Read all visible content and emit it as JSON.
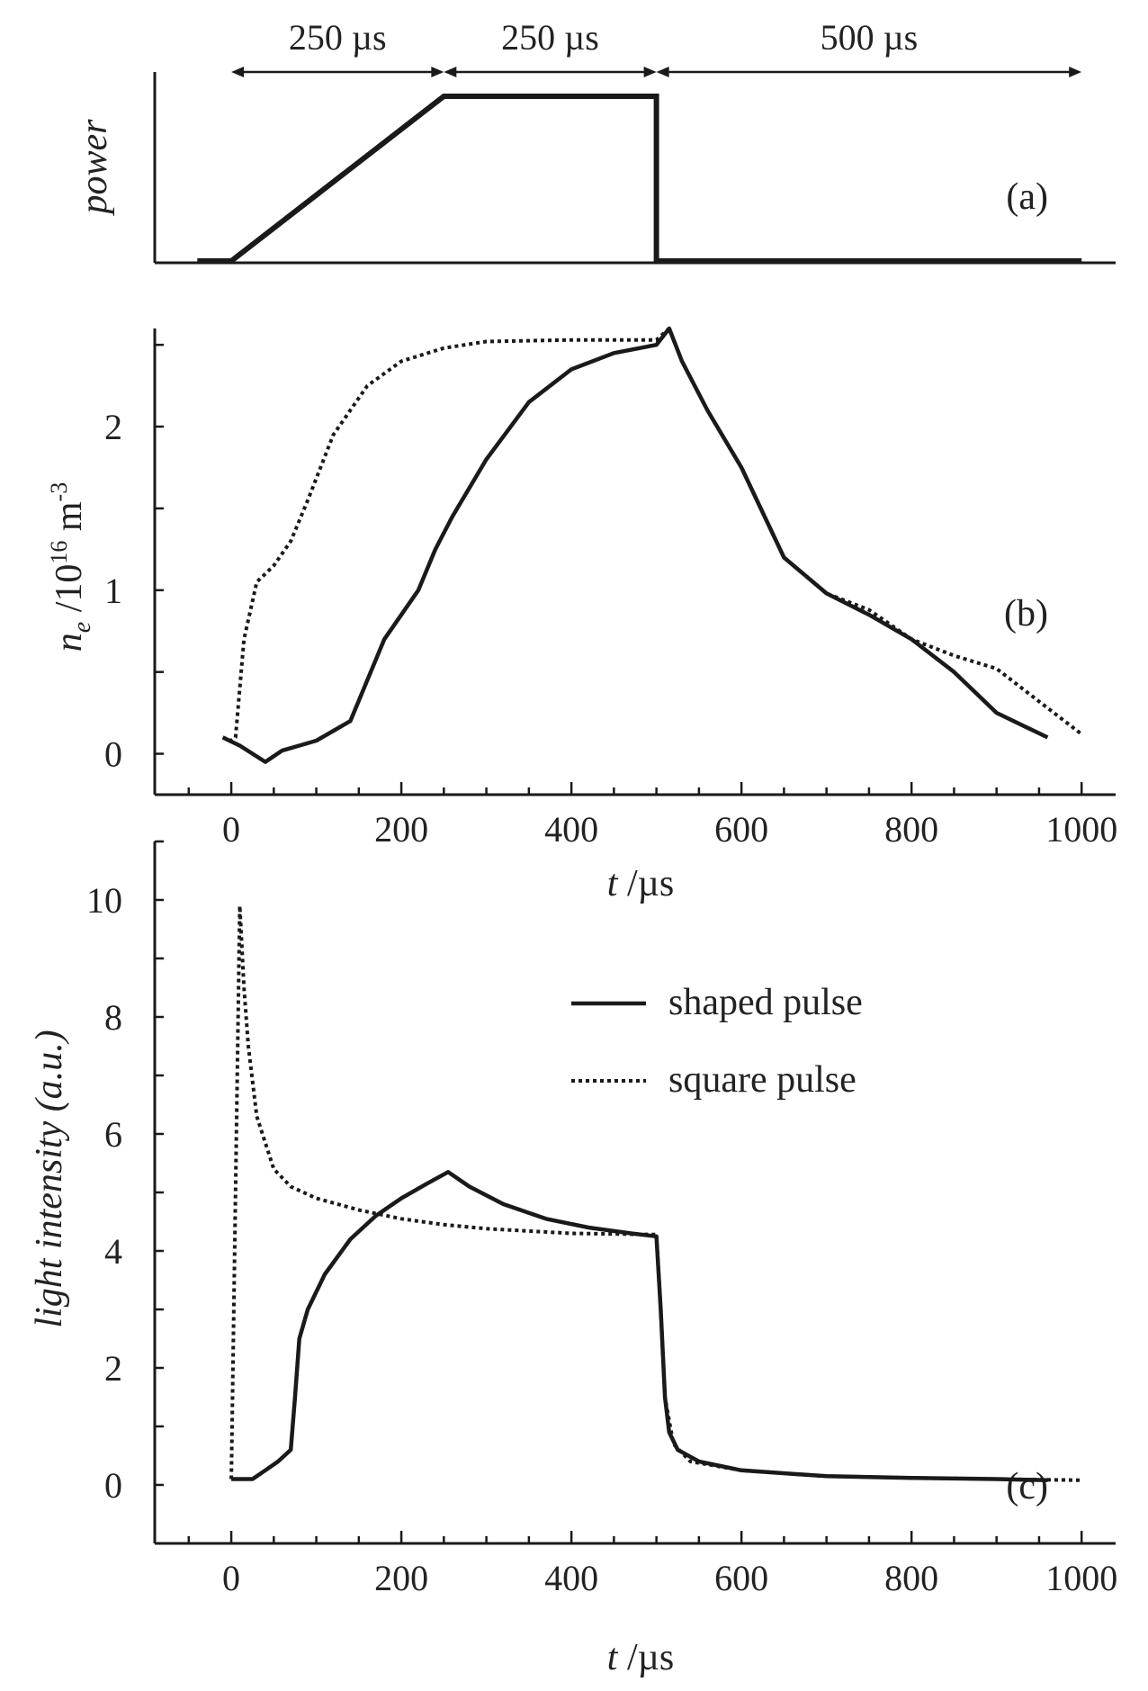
{
  "chart_data": [
    {
      "panel": "(a)",
      "type": "line",
      "ylabel": "power",
      "x_unit_hint": "µs",
      "xlim": [
        -90,
        1040
      ],
      "ylim": [
        0,
        1
      ],
      "annotations": [
        {
          "text": "250 µs",
          "from": 0,
          "to": 250
        },
        {
          "text": "250 µs",
          "from": 250,
          "to": 500
        },
        {
          "text": "500 µs",
          "from": 500,
          "to": 1000
        }
      ],
      "series": [
        {
          "style": "solid",
          "x": [
            -40,
            0,
            250,
            500,
            500,
            1000
          ],
          "y": [
            0,
            0,
            1,
            1,
            0,
            0
          ]
        }
      ]
    },
    {
      "panel": "(b)",
      "type": "line",
      "ylabel_main": "n",
      "ylabel_sub": "e",
      "ylabel_rest": " /10",
      "ylabel_exp": "16",
      "ylabel_unit": " m",
      "ylabel_unit_exp": "-3",
      "xlabel_var": "t",
      "xlabel_unit": " /µs",
      "xlim": [
        -90,
        1040
      ],
      "ylim": [
        -0.25,
        2.6
      ],
      "xticks": [
        "0",
        "200",
        "400",
        "600",
        "800",
        "1000"
      ],
      "xtick_values": [
        0,
        200,
        400,
        600,
        800,
        1000
      ],
      "yticks": [
        "0",
        "1",
        "2"
      ],
      "ytick_values": [
        0,
        1,
        2
      ],
      "series": [
        {
          "style": "solid",
          "x": [
            -10,
            10,
            40,
            60,
            80,
            100,
            140,
            180,
            220,
            240,
            260,
            300,
            350,
            400,
            450,
            500,
            515,
            530,
            560,
            600,
            650,
            700,
            750,
            800,
            850,
            900,
            960
          ],
          "y": [
            0.1,
            0.05,
            -0.05,
            0.02,
            0.05,
            0.08,
            0.2,
            0.7,
            1.0,
            1.25,
            1.45,
            1.8,
            2.15,
            2.35,
            2.45,
            2.5,
            2.6,
            2.4,
            2.1,
            1.75,
            1.2,
            0.98,
            0.85,
            0.7,
            0.5,
            0.25,
            0.1
          ]
        },
        {
          "style": "dotted",
          "x": [
            -10,
            0,
            5,
            15,
            30,
            50,
            70,
            90,
            120,
            160,
            200,
            250,
            300,
            400,
            500,
            515,
            530,
            560,
            600,
            650,
            700,
            750,
            800,
            850,
            900,
            950,
            1000
          ],
          "y": [
            0.1,
            0.08,
            0.1,
            0.7,
            1.05,
            1.15,
            1.3,
            1.55,
            1.95,
            2.25,
            2.4,
            2.48,
            2.52,
            2.53,
            2.53,
            2.6,
            2.4,
            2.1,
            1.75,
            1.2,
            0.98,
            0.88,
            0.7,
            0.6,
            0.52,
            0.32,
            0.12
          ]
        }
      ]
    },
    {
      "panel": "(c)",
      "type": "line",
      "ylabel": "light intensity (a.u.)",
      "xlabel_var": "t",
      "xlabel_unit": " /µs",
      "xlim": [
        -90,
        1040
      ],
      "ylim": [
        -1,
        11
      ],
      "xticks": [
        "0",
        "200",
        "400",
        "600",
        "800",
        "1000"
      ],
      "xtick_values": [
        0,
        200,
        400,
        600,
        800,
        1000
      ],
      "yticks": [
        "0",
        "2",
        "4",
        "6",
        "8",
        "10"
      ],
      "ytick_values": [
        0,
        2,
        4,
        6,
        8,
        10
      ],
      "legend": {
        "placement": "upper-right",
        "entries": [
          {
            "label": "shaped pulse",
            "style": "solid"
          },
          {
            "label": "square pulse",
            "style": "dotted"
          }
        ]
      },
      "series": [
        {
          "name": "shaped pulse",
          "style": "solid",
          "x": [
            0,
            25,
            40,
            55,
            70,
            75,
            80,
            90,
            110,
            140,
            170,
            200,
            230,
            255,
            280,
            320,
            370,
            420,
            470,
            500,
            505,
            510,
            515,
            525,
            550,
            600,
            700,
            800,
            900,
            960
          ],
          "y": [
            0.1,
            0.1,
            0.25,
            0.4,
            0.6,
            1.5,
            2.5,
            3.0,
            3.6,
            4.2,
            4.6,
            4.9,
            5.15,
            5.35,
            5.1,
            4.8,
            4.55,
            4.4,
            4.3,
            4.25,
            3.0,
            1.5,
            0.9,
            0.6,
            0.4,
            0.25,
            0.15,
            0.12,
            0.1,
            0.08
          ]
        },
        {
          "name": "square pulse",
          "style": "dotted",
          "x": [
            0,
            10,
            15,
            20,
            30,
            50,
            70,
            100,
            150,
            200,
            250,
            300,
            400,
            500,
            505,
            510,
            520,
            540,
            600,
            700,
            800,
            900,
            1000
          ],
          "y": [
            0.1,
            9.9,
            8.5,
            7.5,
            6.3,
            5.4,
            5.1,
            4.9,
            4.7,
            4.55,
            4.45,
            4.38,
            4.3,
            4.28,
            3.0,
            1.5,
            0.7,
            0.4,
            0.25,
            0.15,
            0.12,
            0.1,
            0.08
          ]
        }
      ]
    }
  ]
}
